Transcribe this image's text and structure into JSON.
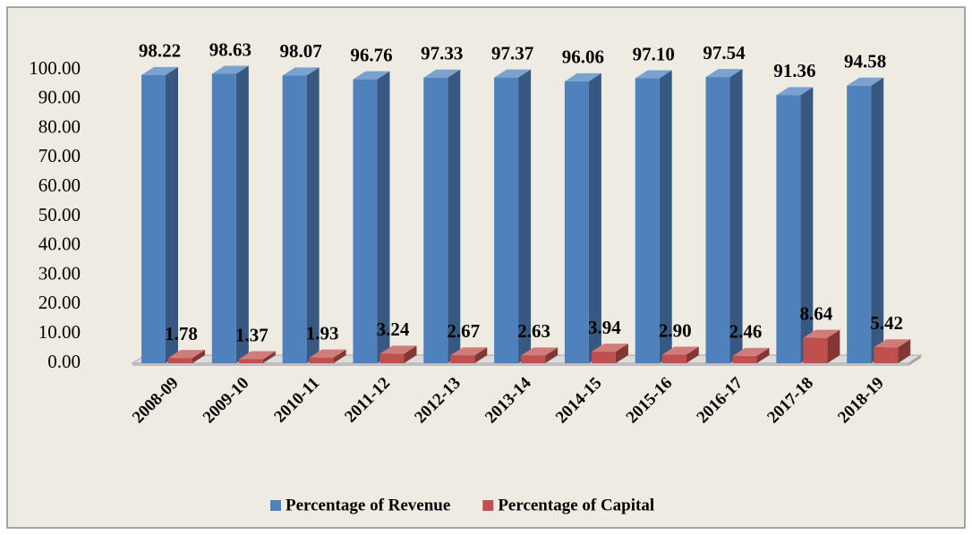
{
  "chart_data": {
    "type": "bar3d",
    "categories": [
      "2008-09",
      "2009-10",
      "2010-11",
      "2011-12",
      "2012-13",
      "2013-14",
      "2014-15",
      "2015-16",
      "2016-17",
      "2017-18",
      "2018-19"
    ],
    "series": [
      {
        "name": "Percentage of Revenue",
        "color": "#4f81bd",
        "values": [
          98.22,
          98.63,
          98.07,
          96.76,
          97.33,
          97.37,
          96.06,
          97.1,
          97.54,
          91.36,
          94.58
        ],
        "value_labels": [
          "98.22",
          "98.63",
          "98.07",
          "96.76",
          "97.33",
          "97.37",
          "96.06",
          "97.10",
          "97.54",
          "91.36",
          "94.58"
        ]
      },
      {
        "name": "Percentage of Capital",
        "color": "#c0504d",
        "values": [
          1.78,
          1.37,
          1.93,
          3.24,
          2.67,
          2.63,
          3.94,
          2.9,
          2.46,
          8.64,
          5.42
        ],
        "value_labels": [
          "1.78",
          "1.37",
          "1.93",
          "3.24",
          "2.67",
          "2.63",
          "3.94",
          "2.90",
          "2.46",
          "8.64",
          "5.42"
        ]
      }
    ],
    "ylim": [
      0,
      100
    ],
    "yticks": [
      {
        "value": 0,
        "label": "0.00"
      },
      {
        "value": 10,
        "label": "10.00"
      },
      {
        "value": 20,
        "label": "20.00"
      },
      {
        "value": 30,
        "label": "30.00"
      },
      {
        "value": 40,
        "label": "40.00"
      },
      {
        "value": 50,
        "label": "50.00"
      },
      {
        "value": 60,
        "label": "60.00"
      },
      {
        "value": 70,
        "label": "70.00"
      },
      {
        "value": 80,
        "label": "80.00"
      },
      {
        "value": 90,
        "label": "90.00"
      },
      {
        "value": 100,
        "label": "100.00"
      }
    ],
    "grid": false,
    "legend": "bottom"
  }
}
